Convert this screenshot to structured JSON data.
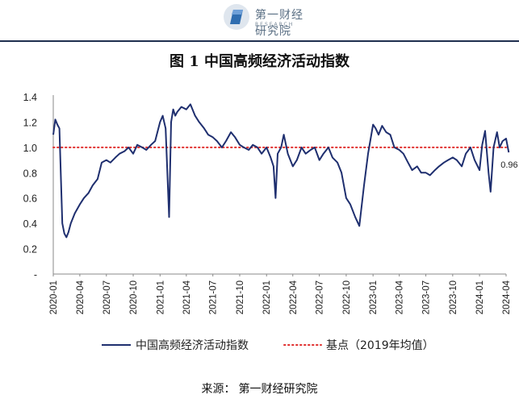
{
  "header": {
    "logo_cn": "第一财经研究院",
    "logo_en": "RESEARCH"
  },
  "figure": {
    "title": "图 1  中国高频经济活动指数"
  },
  "source": {
    "label": "来源：",
    "text": "第一财经研究院"
  },
  "colors": {
    "series": "#1f2f6f",
    "baseline": "#e0302f",
    "rule": "#1f2f4f"
  },
  "chart_data": {
    "type": "line",
    "title": "图 1  中国高频经济活动指数",
    "xlabel": "",
    "ylabel": "",
    "ylim": [
      0,
      1.4
    ],
    "y_ticks": [
      "-",
      "0.2",
      "0.4",
      "0.6",
      "0.8",
      "1.0",
      "1.2",
      "1.4"
    ],
    "y_tick_values": [
      0,
      0.2,
      0.4,
      0.6,
      0.8,
      1.0,
      1.2,
      1.4
    ],
    "x_ticks": [
      "2020-01",
      "2020-04",
      "2020-07",
      "2020-10",
      "2021-01",
      "2021-04",
      "2021-07",
      "2021-10",
      "2022-01",
      "2022-04",
      "2022-07",
      "2022-10",
      "2023-01",
      "2023-04",
      "2023-07",
      "2023-10",
      "2024-01",
      "2024-04"
    ],
    "grid": false,
    "legend_position": "bottom",
    "end_label": "0.96",
    "series": [
      {
        "name": "中国高频经济活动指数",
        "style": "line",
        "color": "#1f2f6f",
        "x": [
          "2020-01-01",
          "2020-01-08",
          "2020-01-15",
          "2020-01-22",
          "2020-02-01",
          "2020-02-08",
          "2020-02-15",
          "2020-02-22",
          "2020-03-01",
          "2020-03-15",
          "2020-04-01",
          "2020-04-15",
          "2020-05-01",
          "2020-05-15",
          "2020-06-01",
          "2020-06-15",
          "2020-07-01",
          "2020-07-15",
          "2020-08-01",
          "2020-08-15",
          "2020-09-01",
          "2020-09-15",
          "2020-10-01",
          "2020-10-15",
          "2020-11-01",
          "2020-11-15",
          "2020-12-01",
          "2020-12-15",
          "2021-01-01",
          "2021-01-10",
          "2021-01-20",
          "2021-02-01",
          "2021-02-08",
          "2021-02-15",
          "2021-02-22",
          "2021-03-01",
          "2021-03-15",
          "2021-04-01",
          "2021-04-15",
          "2021-05-01",
          "2021-05-15",
          "2021-06-01",
          "2021-06-15",
          "2021-07-01",
          "2021-07-15",
          "2021-08-01",
          "2021-08-15",
          "2021-09-01",
          "2021-09-15",
          "2021-10-01",
          "2021-10-15",
          "2021-11-01",
          "2021-11-15",
          "2021-12-01",
          "2021-12-15",
          "2022-01-01",
          "2022-01-15",
          "2022-01-25",
          "2022-02-01",
          "2022-02-08",
          "2022-02-20",
          "2022-03-01",
          "2022-03-15",
          "2022-04-01",
          "2022-04-15",
          "2022-05-01",
          "2022-05-15",
          "2022-06-01",
          "2022-06-15",
          "2022-07-01",
          "2022-07-15",
          "2022-08-01",
          "2022-08-15",
          "2022-09-01",
          "2022-09-15",
          "2022-10-01",
          "2022-10-15",
          "2022-11-01",
          "2022-11-15",
          "2022-12-01",
          "2022-12-15",
          "2023-01-01",
          "2023-01-10",
          "2023-01-20",
          "2023-02-01",
          "2023-02-15",
          "2023-03-01",
          "2023-03-15",
          "2023-04-01",
          "2023-04-15",
          "2023-05-01",
          "2023-05-15",
          "2023-06-01",
          "2023-06-15",
          "2023-07-01",
          "2023-07-15",
          "2023-08-01",
          "2023-08-15",
          "2023-09-01",
          "2023-09-15",
          "2023-10-01",
          "2023-10-15",
          "2023-11-01",
          "2023-11-15",
          "2023-12-01",
          "2023-12-15",
          "2024-01-01",
          "2024-01-10",
          "2024-01-20",
          "2024-02-01",
          "2024-02-08",
          "2024-02-18",
          "2024-03-01",
          "2024-03-10",
          "2024-03-20",
          "2024-04-01",
          "2024-04-10"
        ],
        "values": [
          1.1,
          1.22,
          1.18,
          1.15,
          0.4,
          0.32,
          0.29,
          0.33,
          0.4,
          0.48,
          0.55,
          0.6,
          0.64,
          0.7,
          0.75,
          0.88,
          0.9,
          0.88,
          0.92,
          0.95,
          0.97,
          1.0,
          0.95,
          1.02,
          1.0,
          0.98,
          1.02,
          1.05,
          1.2,
          1.25,
          1.15,
          0.45,
          1.2,
          1.3,
          1.25,
          1.28,
          1.32,
          1.3,
          1.34,
          1.25,
          1.2,
          1.15,
          1.1,
          1.08,
          1.05,
          1.0,
          1.05,
          1.12,
          1.08,
          1.02,
          1.0,
          0.98,
          1.02,
          1.0,
          0.95,
          1.0,
          0.92,
          0.85,
          0.6,
          0.95,
          1.0,
          1.1,
          0.95,
          0.85,
          0.9,
          1.0,
          0.95,
          0.98,
          1.0,
          0.9,
          0.95,
          1.0,
          0.92,
          0.88,
          0.8,
          0.6,
          0.55,
          0.45,
          0.38,
          0.7,
          0.95,
          1.18,
          1.15,
          1.1,
          1.17,
          1.12,
          1.1,
          1.0,
          0.98,
          0.95,
          0.88,
          0.82,
          0.85,
          0.8,
          0.8,
          0.78,
          0.82,
          0.85,
          0.88,
          0.9,
          0.92,
          0.9,
          0.85,
          0.95,
          1.0,
          0.9,
          0.82,
          1.02,
          1.13,
          0.8,
          0.65,
          1.0,
          1.12,
          1.0,
          1.05,
          1.07,
          0.96
        ]
      },
      {
        "name": "基点（2019年均值）",
        "style": "dotted",
        "color": "#e0302f",
        "value": 1.0
      }
    ]
  }
}
